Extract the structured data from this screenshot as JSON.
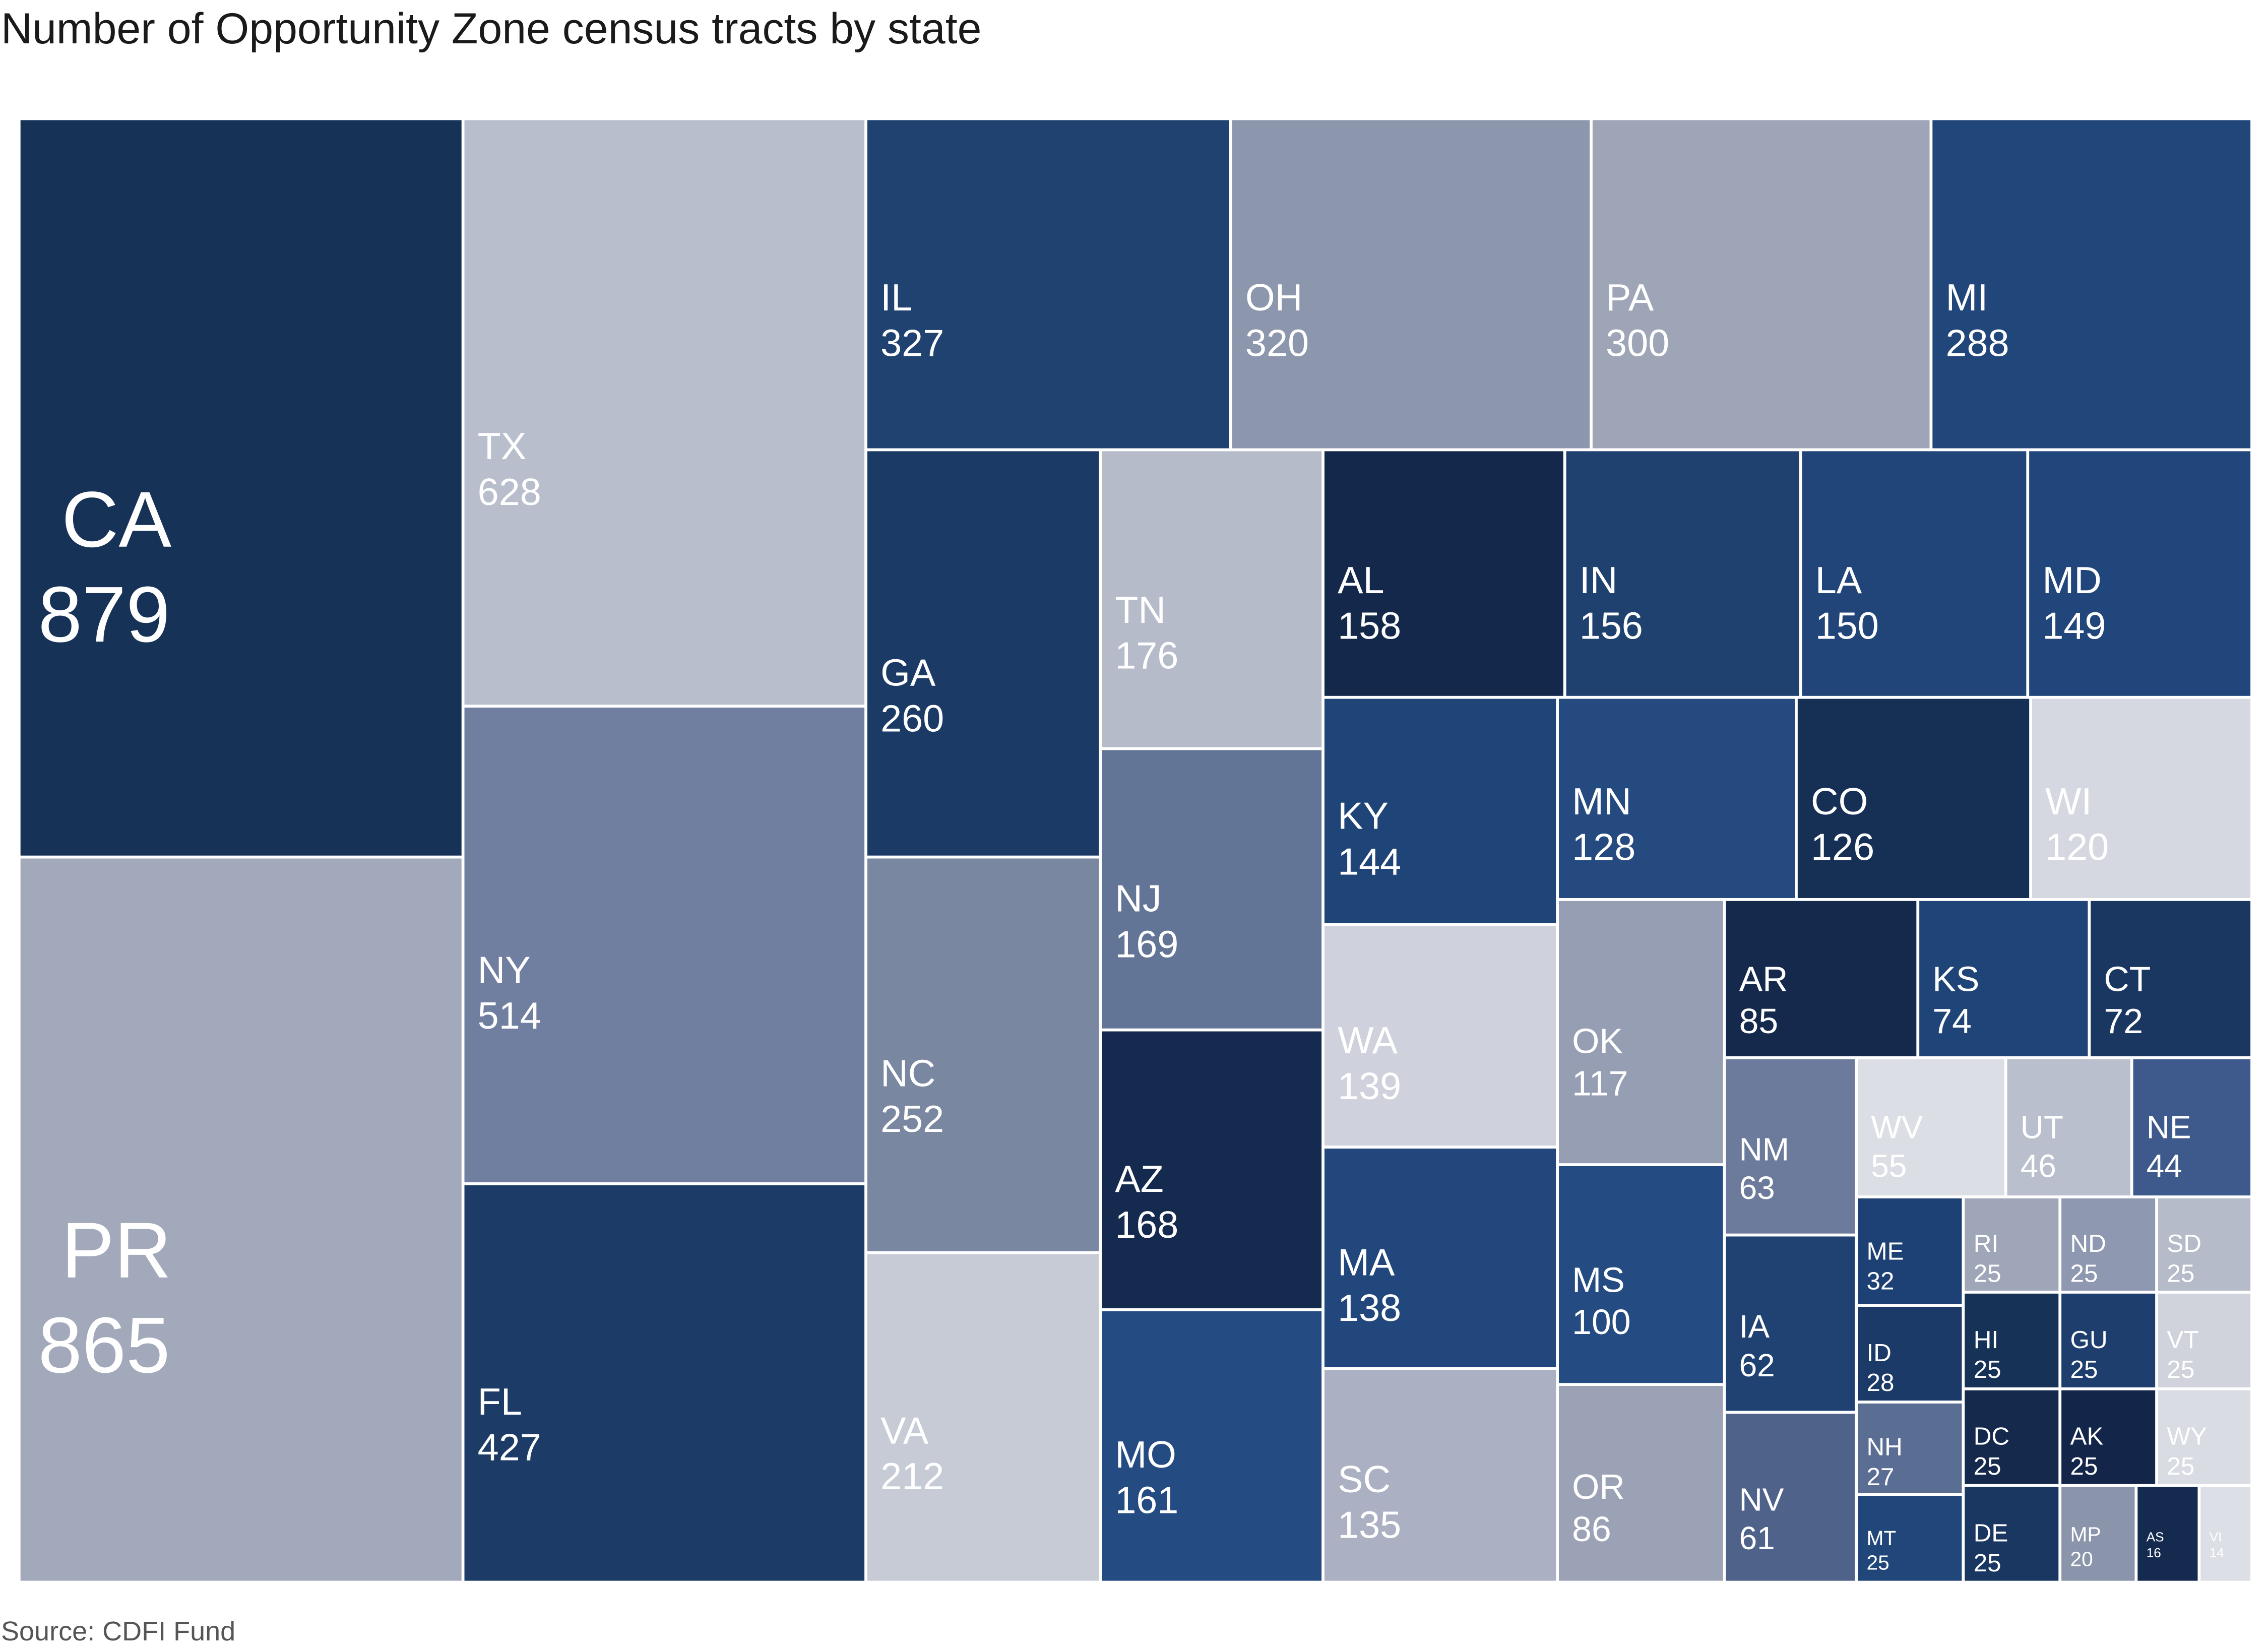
{
  "title": "Number of Opportunity Zone census tracts by state",
  "source": "Source: CDFI Fund",
  "chart_data": {
    "type": "treemap",
    "title": "Number of Opportunity Zone census tracts by state",
    "items": [
      {
        "label": "CA",
        "value": 879,
        "color": "#173257"
      },
      {
        "label": "PR",
        "value": 865,
        "color": "#a2a9ba"
      },
      {
        "label": "TX",
        "value": 628,
        "color": "#b8becc"
      },
      {
        "label": "NY",
        "value": 514,
        "color": "#707fa0"
      },
      {
        "label": "FL",
        "value": 427,
        "color": "#1c3b66"
      },
      {
        "label": "IL",
        "value": 327,
        "color": "#1f4270"
      },
      {
        "label": "OH",
        "value": 320,
        "color": "#8c96ad"
      },
      {
        "label": "PA",
        "value": 300,
        "color": "#9ea5b7"
      },
      {
        "label": "MI",
        "value": 288,
        "color": "#21467a"
      },
      {
        "label": "GA",
        "value": 260,
        "color": "#1b3a65"
      },
      {
        "label": "NC",
        "value": 252,
        "color": "#7a87a1"
      },
      {
        "label": "VA",
        "value": 212,
        "color": "#c7cbd6"
      },
      {
        "label": "TN",
        "value": 176,
        "color": "#b5bbc9"
      },
      {
        "label": "NJ",
        "value": 169,
        "color": "#637596"
      },
      {
        "label": "AZ",
        "value": 168,
        "color": "#152a4f"
      },
      {
        "label": "MO",
        "value": 161,
        "color": "#244b82"
      },
      {
        "label": "AL",
        "value": 158,
        "color": "#13284a"
      },
      {
        "label": "IN",
        "value": 156,
        "color": "#1f4170"
      },
      {
        "label": "LA",
        "value": 150,
        "color": "#214578"
      },
      {
        "label": "MD",
        "value": 149,
        "color": "#21467b"
      },
      {
        "label": "KY",
        "value": 144,
        "color": "#1f4477"
      },
      {
        "label": "WA",
        "value": 139,
        "color": "#cfd2dc"
      },
      {
        "label": "MA",
        "value": 138,
        "color": "#21477c"
      },
      {
        "label": "SC",
        "value": 135,
        "color": "#abb1c2"
      },
      {
        "label": "MN",
        "value": 128,
        "color": "#244a80"
      },
      {
        "label": "CO",
        "value": 126,
        "color": "#162f55"
      },
      {
        "label": "WI",
        "value": 120,
        "color": "#d5d8e0"
      },
      {
        "label": "OK",
        "value": 117,
        "color": "#969eb3"
      },
      {
        "label": "MS",
        "value": 100,
        "color": "#244b82"
      },
      {
        "label": "OR",
        "value": 86,
        "color": "#9ba2b5"
      },
      {
        "label": "AR",
        "value": 85,
        "color": "#15294d"
      },
      {
        "label": "KS",
        "value": 74,
        "color": "#1f4477"
      },
      {
        "label": "CT",
        "value": 72,
        "color": "#1a3762"
      },
      {
        "label": "NM",
        "value": 63,
        "color": "#6c7b9b"
      },
      {
        "label": "IA",
        "value": 62,
        "color": "#1f4273"
      },
      {
        "label": "NV",
        "value": 61,
        "color": "#4f628a"
      },
      {
        "label": "WV",
        "value": 55,
        "color": "#dcdee5"
      },
      {
        "label": "UT",
        "value": 46,
        "color": "#b9bfcc"
      },
      {
        "label": "NE",
        "value": 44,
        "color": "#3e5a8c"
      },
      {
        "label": "ME",
        "value": 32,
        "color": "#1e4175"
      },
      {
        "label": "ID",
        "value": 28,
        "color": "#1b3a67"
      },
      {
        "label": "NH",
        "value": 27,
        "color": "#5a6d93"
      },
      {
        "label": "MT",
        "value": 25,
        "color": "#21467a"
      },
      {
        "label": "RI",
        "value": 25,
        "color": "#9fa6b8"
      },
      {
        "label": "HI",
        "value": 25,
        "color": "#173257"
      },
      {
        "label": "DC",
        "value": 25,
        "color": "#15294d"
      },
      {
        "label": "DE",
        "value": 25,
        "color": "#1a3762"
      },
      {
        "label": "ND",
        "value": 25,
        "color": "#8e98b0"
      },
      {
        "label": "GU",
        "value": 25,
        "color": "#1e3f6e"
      },
      {
        "label": "AK",
        "value": 25,
        "color": "#13264a"
      },
      {
        "label": "MP",
        "value": 20,
        "color": "#8a94ab"
      },
      {
        "label": "SD",
        "value": 25,
        "color": "#b5bbc9"
      },
      {
        "label": "VT",
        "value": 25,
        "color": "#d0d3dc"
      },
      {
        "label": "WY",
        "value": 25,
        "color": "#d9dce3"
      },
      {
        "label": "AS",
        "value": 16,
        "color": "#152a4f"
      },
      {
        "label": "VI",
        "value": 14,
        "color": "#dcdfe6"
      }
    ]
  }
}
